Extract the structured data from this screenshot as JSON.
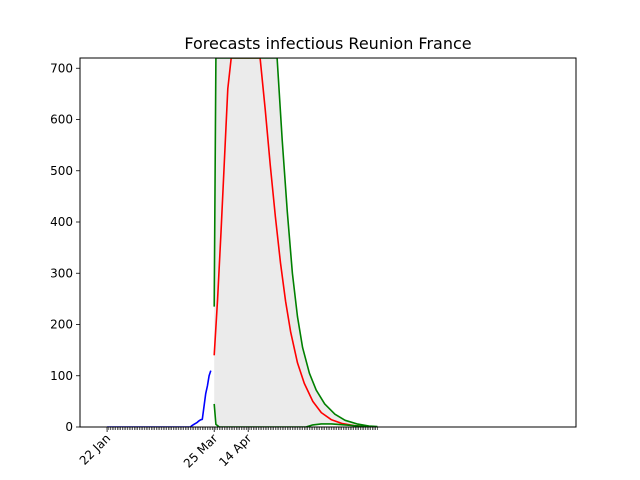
{
  "chart_data": {
    "type": "line",
    "title": "Forecasts infectious Reunion France",
    "xlabel": "",
    "ylabel": "",
    "x_tick_labels": [
      "22 Jan",
      "25 Mar",
      "14 Apr"
    ],
    "x_tick_dates": [
      "2020-01-22",
      "2020-03-25",
      "2020-04-14"
    ],
    "xlim": [
      "2020-01-22",
      "2020-06-30"
    ],
    "ylim": [
      0,
      720
    ],
    "y_ticks": [
      0,
      100,
      200,
      300,
      400,
      500,
      600,
      700
    ],
    "grid": false,
    "legend": "none",
    "series": [
      {
        "color": "#0000ff",
        "style": "observed",
        "points": [
          [
            "2020-01-22",
            0
          ],
          [
            "2020-03-11",
            0
          ],
          [
            "2020-03-12",
            3
          ],
          [
            "2020-03-13",
            5
          ],
          [
            "2020-03-14",
            7
          ],
          [
            "2020-03-15",
            9
          ],
          [
            "2020-03-16",
            12
          ],
          [
            "2020-03-17",
            14
          ],
          [
            "2020-03-18",
            15
          ],
          [
            "2020-03-19",
            40
          ],
          [
            "2020-03-20",
            65
          ],
          [
            "2020-03-21",
            80
          ],
          [
            "2020-03-22",
            100
          ],
          [
            "2020-03-23",
            110
          ]
        ]
      },
      {
        "color": "#ff0000",
        "style": "forecast-median",
        "points": [
          [
            "2020-03-25",
            140
          ],
          [
            "2020-03-27",
            250
          ],
          [
            "2020-03-29",
            380
          ],
          [
            "2020-03-31",
            520
          ],
          [
            "2020-04-02",
            660
          ],
          [
            "2020-04-04",
            720
          ],
          [
            "2020-04-21",
            720
          ],
          [
            "2020-04-24",
            620
          ],
          [
            "2020-04-27",
            510
          ],
          [
            "2020-04-30",
            410
          ],
          [
            "2020-05-03",
            320
          ],
          [
            "2020-05-06",
            245
          ],
          [
            "2020-05-09",
            185
          ],
          [
            "2020-05-13",
            125
          ],
          [
            "2020-05-17",
            85
          ],
          [
            "2020-05-22",
            50
          ],
          [
            "2020-05-27",
            28
          ],
          [
            "2020-06-02",
            14
          ],
          [
            "2020-06-08",
            7
          ],
          [
            "2020-06-15",
            3
          ],
          [
            "2020-06-22",
            1
          ],
          [
            "2020-06-29",
            0
          ]
        ]
      },
      {
        "color": "#008000",
        "style": "forecast-upper",
        "points": [
          [
            "2020-03-25",
            235
          ],
          [
            "2020-03-26",
            720
          ],
          [
            "2020-05-01",
            720
          ],
          [
            "2020-05-04",
            560
          ],
          [
            "2020-05-07",
            420
          ],
          [
            "2020-05-10",
            300
          ],
          [
            "2020-05-13",
            215
          ],
          [
            "2020-05-16",
            155
          ],
          [
            "2020-05-20",
            105
          ],
          [
            "2020-05-24",
            72
          ],
          [
            "2020-05-29",
            45
          ],
          [
            "2020-06-04",
            25
          ],
          [
            "2020-06-10",
            13
          ],
          [
            "2020-06-17",
            6
          ],
          [
            "2020-06-24",
            2
          ],
          [
            "2020-06-29",
            1
          ]
        ]
      },
      {
        "color": "#008000",
        "style": "forecast-lower",
        "points": [
          [
            "2020-03-25",
            45
          ],
          [
            "2020-03-26",
            5
          ],
          [
            "2020-03-28",
            0
          ],
          [
            "2020-05-18",
            0
          ],
          [
            "2020-05-22",
            4
          ],
          [
            "2020-05-27",
            6
          ],
          [
            "2020-06-02",
            6
          ],
          [
            "2020-06-10",
            4
          ],
          [
            "2020-06-18",
            2
          ],
          [
            "2020-06-29",
            0
          ]
        ]
      }
    ],
    "band": {
      "color": "#ebebeb",
      "from": "2020-03-25",
      "to": "2020-06-29"
    }
  }
}
